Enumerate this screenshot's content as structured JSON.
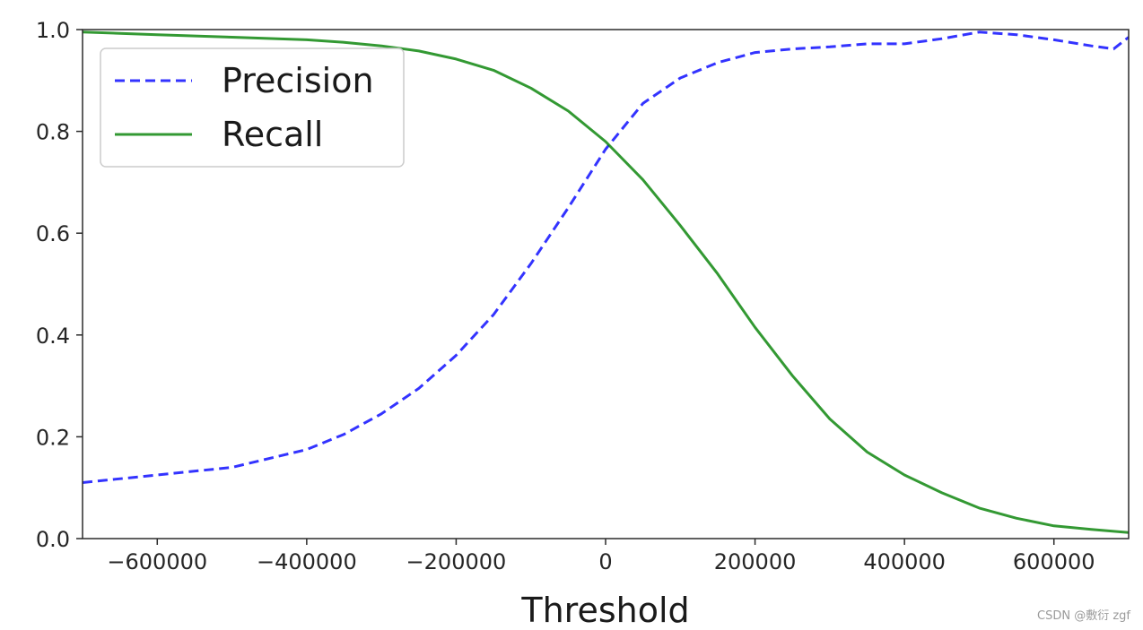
{
  "chart_data": {
    "type": "line",
    "title": "",
    "xlabel": "Threshold",
    "ylabel": "",
    "xlim": [
      -700000,
      700000
    ],
    "ylim": [
      0,
      1
    ],
    "xticks": [
      -600000,
      -400000,
      -200000,
      0,
      200000,
      400000,
      600000
    ],
    "xtick_labels": [
      "−600000",
      "−400000",
      "−200000",
      "0",
      "200000",
      "400000",
      "600000"
    ],
    "yticks": [
      0,
      0.2,
      0.4,
      0.6,
      0.8,
      1.0
    ],
    "ytick_labels": [
      "0.0",
      "0.2",
      "0.4",
      "0.6",
      "0.8",
      "1.0"
    ],
    "grid": false,
    "legend_position": "upper-left",
    "series": [
      {
        "name": "Precision",
        "color": "#0000ff",
        "style": "dashed",
        "x": [
          -700000,
          -600000,
          -500000,
          -400000,
          -350000,
          -300000,
          -250000,
          -200000,
          -150000,
          -100000,
          -50000,
          0,
          50000,
          100000,
          150000,
          200000,
          250000,
          300000,
          350000,
          400000,
          450000,
          500000,
          550000,
          600000,
          650000,
          680000,
          700000
        ],
        "y": [
          0.11,
          0.125,
          0.14,
          0.175,
          0.205,
          0.245,
          0.295,
          0.36,
          0.44,
          0.54,
          0.65,
          0.765,
          0.855,
          0.905,
          0.935,
          0.955,
          0.962,
          0.966,
          0.972,
          0.972,
          0.982,
          0.995,
          0.99,
          0.98,
          0.968,
          0.962,
          0.985
        ]
      },
      {
        "name": "Recall",
        "color": "#008000",
        "style": "solid",
        "x": [
          -700000,
          -600000,
          -500000,
          -400000,
          -350000,
          -300000,
          -250000,
          -200000,
          -150000,
          -100000,
          -50000,
          0,
          50000,
          100000,
          150000,
          200000,
          250000,
          300000,
          350000,
          400000,
          450000,
          500000,
          550000,
          600000,
          650000,
          700000
        ],
        "y": [
          0.995,
          0.99,
          0.985,
          0.98,
          0.975,
          0.968,
          0.958,
          0.942,
          0.92,
          0.885,
          0.84,
          0.78,
          0.705,
          0.615,
          0.52,
          0.415,
          0.32,
          0.235,
          0.17,
          0.125,
          0.09,
          0.06,
          0.04,
          0.025,
          0.018,
          0.012
        ]
      }
    ]
  },
  "watermark": "CSDN @敷衍 zgf"
}
